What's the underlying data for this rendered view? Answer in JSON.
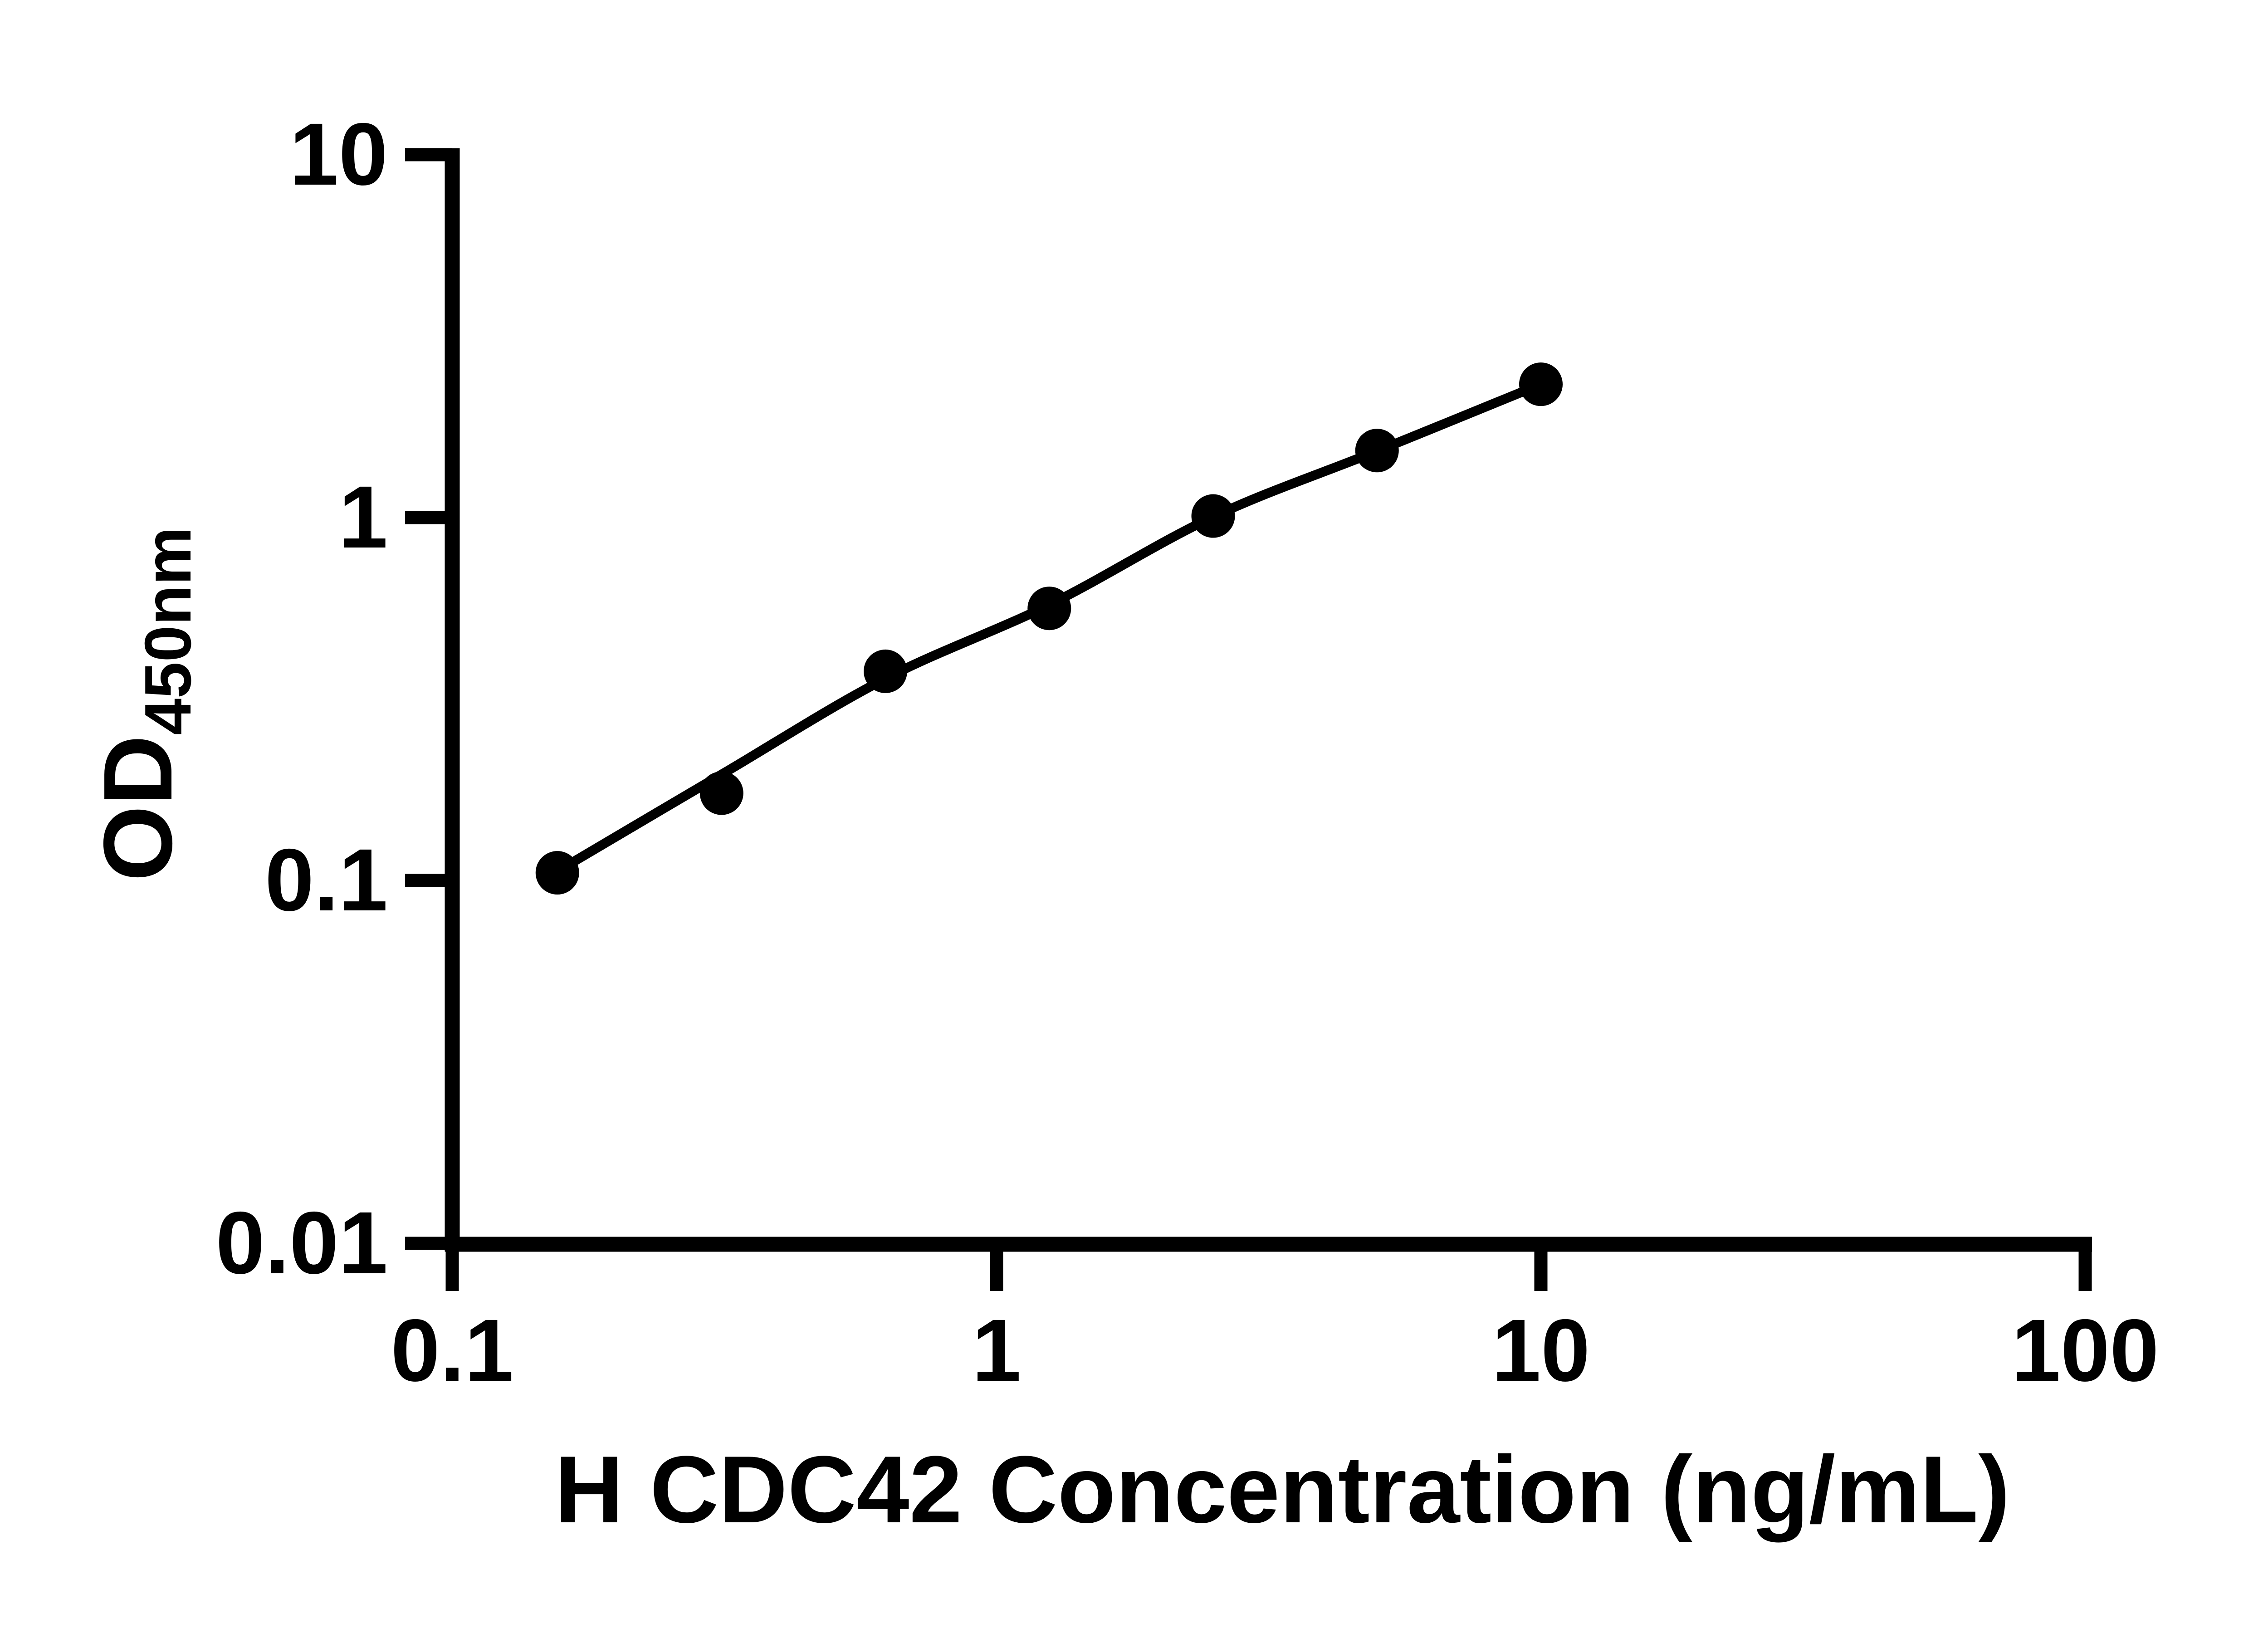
{
  "figure": {
    "background": "#ffffff",
    "ink": "#000000"
  },
  "chart_data": {
    "type": "scatter",
    "title": "",
    "xlabel": "H CDC42 Concentration (ng/mL)",
    "ylabel_main": "OD",
    "ylabel_sub": "450nm",
    "x_scale": "log10",
    "y_scale": "log10",
    "xlim": [
      0.1,
      100
    ],
    "ylim": [
      0.01,
      10
    ],
    "xtick_values": [
      0.1,
      1,
      10,
      100
    ],
    "xtick_labels": [
      "0.1",
      "1",
      "10",
      "100"
    ],
    "ytick_values": [
      10,
      1,
      0.1,
      0.01
    ],
    "ytick_labels": [
      "10",
      "1",
      "0.1",
      "0.01"
    ],
    "grid": false,
    "legend": "none",
    "marker": "filled-circle",
    "marker_color": "#000000",
    "line_color": "#000000",
    "series": [
      {
        "x": [
          0.156,
          0.3125,
          0.625,
          1.25,
          2.5,
          5,
          10
        ],
        "y": [
          0.105,
          0.174,
          0.377,
          0.562,
          1.01,
          1.53,
          2.33
        ]
      }
    ],
    "fit_curve": {
      "x": [
        0.156,
        0.3125,
        0.625,
        1.25,
        2.5,
        5,
        10
      ],
      "y": [
        0.106,
        0.196,
        0.36,
        0.575,
        1.005,
        1.525,
        2.33
      ]
    }
  }
}
